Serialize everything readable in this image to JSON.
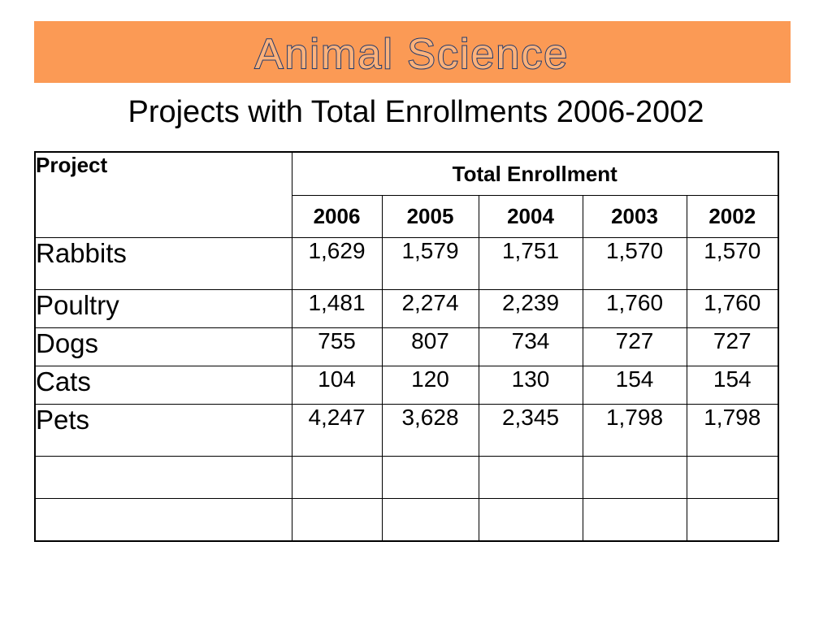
{
  "header": {
    "banner_title": "Animal Science",
    "banner_color": "#fb9a55",
    "banner_text_fill": "#ffb27a",
    "banner_text_stroke": "#1f3a6e"
  },
  "subtitle": "Projects with Total Enrollments 2006-2002",
  "table": {
    "project_header": "Project",
    "total_header": "Total Enrollment",
    "years": [
      "2006",
      "2005",
      "2004",
      "2003",
      "2002"
    ],
    "rows": [
      {
        "name": "Rabbits",
        "values": [
          "1,629",
          "1,579",
          "1,751",
          "1,570",
          "1,570"
        ]
      },
      {
        "name": "Poultry",
        "values": [
          "1,481",
          "2,274",
          "2,239",
          "1,760",
          "1,760"
        ]
      },
      {
        "name": "Dogs",
        "values": [
          "755",
          "807",
          "734",
          "727",
          "727"
        ]
      },
      {
        "name": "Cats",
        "values": [
          "104",
          "120",
          "130",
          "154",
          "154"
        ]
      },
      {
        "name": "Pets",
        "values": [
          "4,247",
          "3,628",
          "2,345",
          "1,798",
          "1,798"
        ]
      }
    ]
  }
}
